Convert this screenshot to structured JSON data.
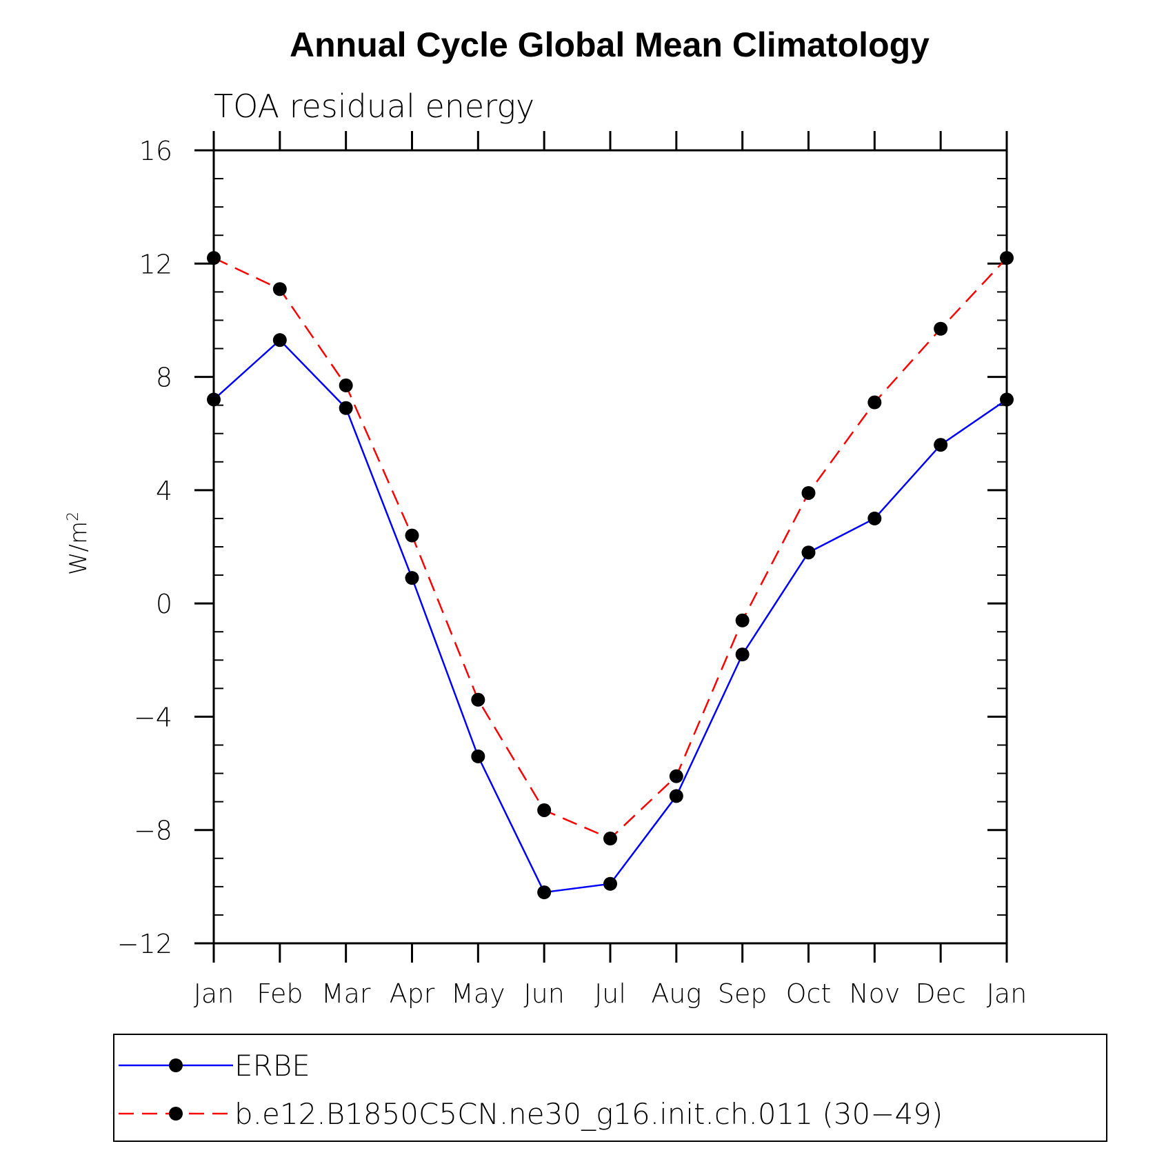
{
  "chart_data": {
    "type": "line",
    "title": "Annual Cycle Global Mean Climatology",
    "subtitle": "TOA residual energy",
    "ylabel": "W/m",
    "ylabel_sup": "2",
    "categories": [
      "Jan",
      "Feb",
      "Mar",
      "Apr",
      "May",
      "Jun",
      "Jul",
      "Aug",
      "Sep",
      "Oct",
      "Nov",
      "Dec",
      "Jan"
    ],
    "ylim": [
      -12,
      16
    ],
    "yticks": [
      -12,
      -8,
      -4,
      0,
      4,
      8,
      12,
      16
    ],
    "ytick_labels": [
      "−12",
      "−8",
      "−4",
      "0",
      "4",
      "8",
      "12",
      "16"
    ],
    "series": [
      {
        "name": "ERBE",
        "color": "#0000ff",
        "style": "solid",
        "values": [
          7.2,
          9.3,
          6.9,
          0.9,
          -5.4,
          -10.2,
          -9.9,
          -6.8,
          -1.8,
          1.8,
          3.0,
          5.6,
          7.2
        ]
      },
      {
        "name": "b.e12.B1850C5CN.ne30_g16.init.ch.011 (30−49)",
        "color": "#ff0000",
        "style": "dashed",
        "values": [
          12.2,
          11.1,
          7.7,
          2.4,
          -3.4,
          -7.3,
          -8.3,
          -6.1,
          -0.6,
          3.9,
          7.1,
          9.7,
          12.2
        ]
      }
    ],
    "marker_color": "#000000",
    "grid": false,
    "legend_position": "bottom"
  }
}
